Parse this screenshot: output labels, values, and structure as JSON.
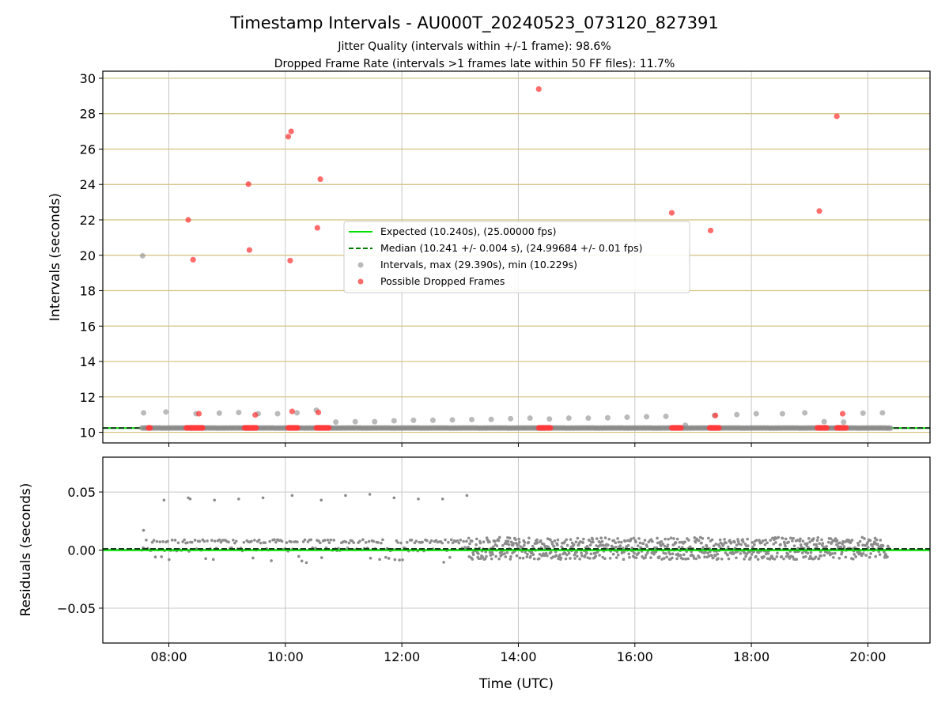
{
  "title": "Timestamp Intervals - AU000T_20240523_073120_827391",
  "subtitle_jitter": "Jitter Quality (intervals within +/-1 frame): 98.6%",
  "subtitle_dropped": "Dropped Frame Rate (intervals >1 frames late within 50 FF files): 11.7%",
  "colors": {
    "expected": "#00e000",
    "median": "#007a00",
    "intervals": "#8c8c8c",
    "dropped": "#ff3b3b",
    "hgrid_top": "#d2c17e",
    "grid": "#c8c8c8"
  },
  "chart_data": [
    {
      "type": "scatter",
      "ylabel": "Intervals (seconds)",
      "xlim": [
        "06:52",
        "21:04"
      ],
      "ylim": [
        9.4,
        30.4
      ],
      "yticks": [
        "10",
        "12",
        "14",
        "16",
        "18",
        "20",
        "22",
        "24",
        "26",
        "28",
        "30"
      ],
      "grid": true,
      "legend_position": "center",
      "legend": {
        "expected": "Expected (10.240s), (25.00000 fps)",
        "median": "Median (10.241 +/- 0.004 s), (24.99684 +/- 0.01 fps)",
        "intervals": "Intervals, max (29.390s), min (10.229s)",
        "dropped": "Possible Dropped Frames"
      },
      "expected_y": 10.24,
      "median_y": 10.241,
      "series": [
        {
          "name": "Intervals, max (29.390s), min (10.229s)",
          "points": [
            [
              "07:33",
              19.97
            ],
            [
              "07:34",
              11.1
            ],
            [
              "07:57",
              11.15
            ],
            [
              "08:28",
              11.05
            ],
            [
              "08:52",
              11.08
            ],
            [
              "09:12",
              11.12
            ],
            [
              "09:32",
              11.05
            ],
            [
              "09:52",
              11.05
            ],
            [
              "10:12",
              11.1
            ],
            [
              "10:32",
              11.25
            ],
            [
              "10:52",
              10.58
            ],
            [
              "11:12",
              10.6
            ],
            [
              "11:32",
              10.6
            ],
            [
              "11:52",
              10.65
            ],
            [
              "12:12",
              10.68
            ],
            [
              "12:32",
              10.68
            ],
            [
              "12:52",
              10.7
            ],
            [
              "13:12",
              10.72
            ],
            [
              "13:32",
              10.73
            ],
            [
              "13:52",
              10.77
            ],
            [
              "14:12",
              10.8
            ],
            [
              "14:32",
              10.75
            ],
            [
              "14:52",
              10.8
            ],
            [
              "15:12",
              10.8
            ],
            [
              "15:32",
              10.82
            ],
            [
              "15:52",
              10.85
            ],
            [
              "16:12",
              10.88
            ],
            [
              "16:32",
              10.9
            ],
            [
              "16:52",
              10.4
            ],
            [
              "17:22",
              10.95
            ],
            [
              "17:45",
              11.0
            ],
            [
              "18:05",
              11.05
            ],
            [
              "18:32",
              11.05
            ],
            [
              "18:55",
              11.1
            ],
            [
              "19:15",
              10.6
            ],
            [
              "19:35",
              10.58
            ],
            [
              "19:55",
              11.08
            ],
            [
              "20:15",
              11.1
            ]
          ]
        },
        {
          "name": "Possible Dropped Frames",
          "points": [
            [
              "08:20",
              22.0
            ],
            [
              "08:25",
              19.75
            ],
            [
              "08:31",
              11.05
            ],
            [
              "09:22",
              24.02
            ],
            [
              "09:23",
              20.3
            ],
            [
              "09:29",
              10.98
            ],
            [
              "10:03",
              26.7
            ],
            [
              "10:05",
              19.7
            ],
            [
              "10:06",
              27.0
            ],
            [
              "10:07",
              11.18
            ],
            [
              "10:33",
              21.55
            ],
            [
              "10:34",
              11.12
            ],
            [
              "10:36",
              24.3
            ],
            [
              "14:21",
              29.39
            ],
            [
              "16:38",
              22.4
            ],
            [
              "17:18",
              21.4
            ],
            [
              "17:23",
              10.95
            ],
            [
              "19:10",
              22.5
            ],
            [
              "19:28",
              27.85
            ],
            [
              "19:34",
              11.05
            ]
          ],
          "baseline_clusters": [
            [
              "07:39",
              "07:41"
            ],
            [
              "08:18",
              "08:35"
            ],
            [
              "09:18",
              "09:30"
            ],
            [
              "10:03",
              "10:13"
            ],
            [
              "10:32",
              "10:45"
            ],
            [
              "14:21",
              "14:33"
            ],
            [
              "16:38",
              "16:48"
            ],
            [
              "17:17",
              "17:27"
            ],
            [
              "19:08",
              "19:18"
            ],
            [
              "19:28",
              "19:38"
            ]
          ],
          "baseline_y": 10.25
        }
      ]
    },
    {
      "type": "scatter",
      "xlabel": "Time (UTC)",
      "ylabel": "Residuals (seconds)",
      "xlim": [
        "06:52",
        "21:04"
      ],
      "ylim": [
        -0.08,
        0.08
      ],
      "yticks": [
        "0.05",
        "0.00",
        "−0.05"
      ],
      "ytick_values": [
        0.05,
        0.0,
        -0.05
      ],
      "xticks": [
        "08:00",
        "10:00",
        "12:00",
        "14:00",
        "16:00",
        "18:00",
        "20:00"
      ],
      "grid": true,
      "expected_y": 0.0,
      "median_y": 0.001,
      "series": [
        {
          "name": "Residuals",
          "outliers": [
            [
              "07:34",
              0.017
            ],
            [
              "07:55",
              0.043
            ],
            [
              "08:20",
              0.045
            ],
            [
              "08:22",
              0.044
            ],
            [
              "08:47",
              0.043
            ],
            [
              "09:12",
              0.044
            ],
            [
              "09:37",
              0.045
            ],
            [
              "10:07",
              0.047
            ],
            [
              "10:37",
              0.043
            ],
            [
              "11:02",
              0.047
            ],
            [
              "11:27",
              0.048
            ],
            [
              "11:52",
              0.045
            ],
            [
              "12:17",
              0.044
            ],
            [
              "12:42",
              0.044
            ],
            [
              "13:07",
              0.047
            ]
          ],
          "bands": [
            {
              "start": "07:32",
              "end": "13:05",
              "min": -0.011,
              "max": 0.009,
              "density": 0.35
            },
            {
              "start": "13:05",
              "end": "20:22",
              "min": -0.008,
              "max": 0.011,
              "density": 1.0
            }
          ]
        }
      ]
    }
  ]
}
